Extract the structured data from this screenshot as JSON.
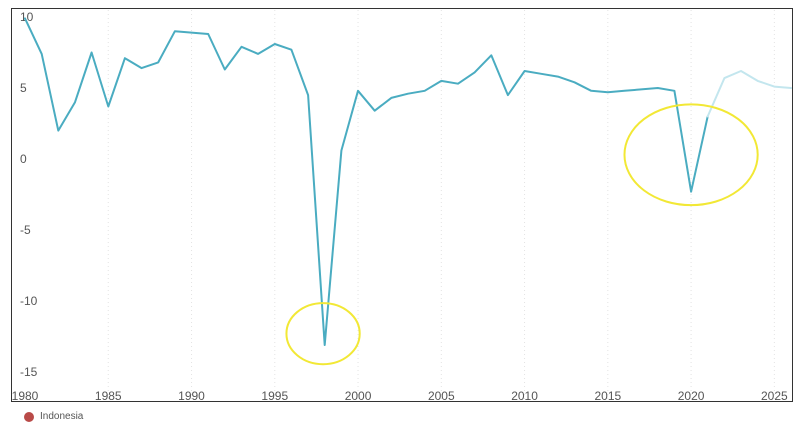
{
  "chart_data": {
    "type": "line",
    "title": "",
    "xlabel": "",
    "ylabel": "",
    "xlim": [
      1980,
      2026
    ],
    "ylim": [
      -15,
      10
    ],
    "yticks": [
      10,
      5,
      0,
      -5,
      -10,
      -15
    ],
    "xticks": [
      1980,
      1985,
      1990,
      1995,
      2000,
      2005,
      2010,
      2015,
      2020,
      2025
    ],
    "grid": "vertical dotted",
    "legend_position": "bottom-left",
    "series": [
      {
        "name": "Indonesia",
        "color": "#4aacc1",
        "x": [
          1980,
          1981,
          1982,
          1983,
          1984,
          1985,
          1986,
          1987,
          1988,
          1989,
          1990,
          1991,
          1992,
          1993,
          1994,
          1995,
          1996,
          1997,
          1998,
          1999,
          2000,
          2001,
          2002,
          2003,
          2004,
          2005,
          2006,
          2007,
          2008,
          2009,
          2010,
          2011,
          2012,
          2013,
          2014,
          2015,
          2016,
          2017,
          2018,
          2019,
          2020,
          2021
        ],
        "values": [
          9.9,
          7.4,
          2.0,
          4.0,
          7.5,
          3.7,
          7.1,
          6.4,
          6.8,
          9.0,
          8.9,
          8.8,
          6.3,
          7.9,
          7.4,
          8.1,
          7.7,
          4.5,
          -13.1,
          0.6,
          4.8,
          3.4,
          4.3,
          4.6,
          4.8,
          5.5,
          5.3,
          6.1,
          7.3,
          4.5,
          6.2,
          6.0,
          5.8,
          5.4,
          4.8,
          4.7,
          4.8,
          4.9,
          5.0,
          4.8,
          -2.3,
          3.0
        ]
      },
      {
        "name": "",
        "color": "#c3e6ee",
        "x": [
          2021,
          2022,
          2023,
          2024,
          2025,
          2026
        ],
        "values": [
          3.0,
          5.7,
          6.2,
          5.5,
          5.1,
          5.0
        ]
      }
    ],
    "annotations": [
      {
        "type": "ellipse",
        "color": "#f2e835",
        "cx": 1997.9,
        "cy": -12.3,
        "rx": 2.2,
        "ry": 2.15
      },
      {
        "type": "ellipse",
        "color": "#f2e835",
        "cx": 2020.0,
        "cy": 0.3,
        "rx": 4.0,
        "ry": 3.55
      }
    ]
  }
}
